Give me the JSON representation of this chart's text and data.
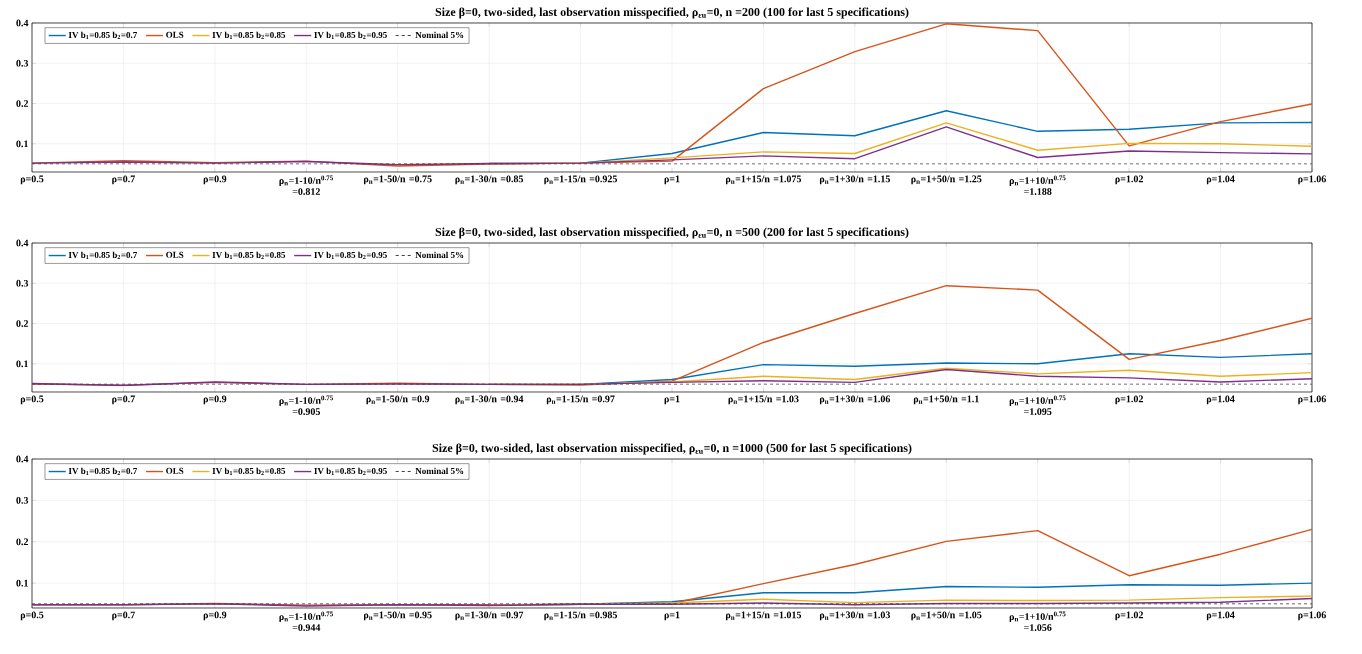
{
  "chart_data": [
    {
      "type": "line",
      "title": "Size β=0, two-sided, last observation misspecified, ρ$_{εu}$=0, n =200 (100 for last 5 specifications)",
      "categories": [
        "ρ=0.5",
        "ρ=0.7",
        "ρ=0.9",
        "ρ$_{n}$=1-10/n$^{0.75}$ =0.812",
        "ρ$_{n}$=1-50/n =0.75",
        "ρ$_{n}$=1-30/n =0.85",
        "ρ$_{n}$=1-15/n =0.925",
        "ρ=1",
        "ρ$_{n}$=1+15/n =1.075",
        "ρ$_{n}$=1+30/n =1.15",
        "ρ$_{n}$=1+50/n =1.25",
        "ρ$_{n}$=1+10/n$^{0.75}$ =1.188",
        "ρ=1.02",
        "ρ=1.04",
        "ρ=1.06"
      ],
      "series": [
        {
          "name": "IV b$_{1}$=0.85 b$_{2}$=0.7",
          "color": "#0072bd",
          "values": [
            null,
            null,
            null,
            null,
            null,
            0.051,
            0.052,
            0.076,
            0.128,
            0.12,
            0.182,
            0.131,
            0.136,
            0.152,
            0.153
          ]
        },
        {
          "name": "OLS",
          "color": "#d95319",
          "values": [
            0.052,
            0.058,
            0.053,
            0.057,
            0.045,
            0.05,
            0.052,
            0.057,
            0.237,
            0.329,
            0.398,
            0.381,
            0.095,
            0.155,
            0.199
          ]
        },
        {
          "name": "IV b$_{1}$=0.85 b$_{2}$=0.85",
          "color": "#edb120",
          "values": [
            null,
            null,
            null,
            null,
            null,
            0.051,
            0.052,
            0.065,
            0.08,
            0.076,
            0.152,
            0.084,
            0.101,
            0.1,
            0.094
          ]
        },
        {
          "name": "IV b$_{1}$=0.85 b$_{2}$=0.95",
          "color": "#7e2f8e",
          "values": [
            0.052,
            0.055,
            0.052,
            0.056,
            0.048,
            0.051,
            0.052,
            0.06,
            0.07,
            0.063,
            0.142,
            0.066,
            0.082,
            0.078,
            0.075
          ]
        }
      ],
      "ref_lines": [
        {
          "axis": "y",
          "value": 0.05,
          "label": "Nominal 5%",
          "color": "#404040",
          "line_style": "dashed"
        }
      ],
      "ylim": [
        0.03,
        0.4
      ],
      "yticks": [
        0.1,
        0.2,
        0.3,
        0.4
      ],
      "grid": true,
      "legend": "top left"
    },
    {
      "type": "line",
      "title": "Size β=0, two-sided, last observation misspecified, ρ$_{εu}$=0, n =500 (200 for last 5 specifications)",
      "categories": [
        "ρ=0.5",
        "ρ=0.7",
        "ρ=0.9",
        "ρ$_{n}$=1-10/n$^{0.75}$ =0.905",
        "ρ$_{n}$=1-50/n =0.9",
        "ρ$_{n}$=1-30/n =0.94",
        "ρ$_{n}$=1-15/n =0.97",
        "ρ=1",
        "ρ$_{n}$=1+15/n =1.03",
        "ρ$_{n}$=1+30/n =1.06",
        "ρ$_{n}$=1+50/n =1.1",
        "ρ$_{n}$=1+10/n$^{0.75}$ =1.095",
        "ρ=1.02",
        "ρ=1.04",
        "ρ=1.06"
      ],
      "series": [
        {
          "name": "IV b$_{1}$=0.85 b$_{2}$=0.7",
          "color": "#0072bd",
          "values": [
            null,
            null,
            null,
            null,
            null,
            0.049,
            0.049,
            0.061,
            0.098,
            0.094,
            0.102,
            0.1,
            0.125,
            0.116,
            0.125
          ]
        },
        {
          "name": "OLS",
          "color": "#d95319",
          "values": [
            0.05,
            0.047,
            0.054,
            0.049,
            0.052,
            0.049,
            0.047,
            0.057,
            0.153,
            0.225,
            0.294,
            0.283,
            0.111,
            0.158,
            0.213
          ]
        },
        {
          "name": "IV b$_{1}$=0.85 b$_{2}$=0.85",
          "color": "#edb120",
          "values": [
            null,
            null,
            null,
            null,
            null,
            0.049,
            0.049,
            0.055,
            0.069,
            0.061,
            0.089,
            0.075,
            0.084,
            0.069,
            0.078
          ]
        },
        {
          "name": "IV b$_{1}$=0.85 b$_{2}$=0.95",
          "color": "#7e2f8e",
          "values": [
            0.051,
            0.046,
            0.055,
            0.049,
            0.05,
            0.049,
            0.049,
            0.054,
            0.058,
            0.054,
            0.086,
            0.069,
            0.065,
            0.055,
            0.063
          ]
        }
      ],
      "ref_lines": [
        {
          "axis": "y",
          "value": 0.05,
          "label": "Nominal 5%",
          "color": "#404040",
          "line_style": "dashed"
        }
      ],
      "ylim": [
        0.03,
        0.4
      ],
      "yticks": [
        0.1,
        0.2,
        0.3,
        0.4
      ],
      "grid": true,
      "legend": "top left"
    },
    {
      "type": "line",
      "title": "Size β=0, two-sided, last observation misspecified, ρ$_{εu}$=0, n =1000 (500 for last 5 specifications)",
      "categories": [
        "ρ=0.5",
        "ρ=0.7",
        "ρ=0.9",
        "ρ$_{n}$=1-10/n$^{0.75}$ =0.944",
        "ρ$_{n}$=1-50/n =0.95",
        "ρ$_{n}$=1-30/n =0.97",
        "ρ$_{n}$=1-15/n =0.985",
        "ρ=1",
        "ρ$_{n}$=1+15/n =1.015",
        "ρ$_{n}$=1+30/n =1.03",
        "ρ$_{n}$=1+50/n =1.05",
        "ρ$_{n}$=1+10/n$^{0.75}$ =1.056",
        "ρ=1.02",
        "ρ=1.04",
        "ρ=1.06"
      ],
      "series": [
        {
          "name": "IV b$_{1}$=0.85 b$_{2}$=0.7",
          "color": "#0072bd",
          "values": [
            null,
            null,
            null,
            null,
            null,
            0.047,
            0.049,
            0.055,
            0.077,
            0.077,
            0.092,
            0.09,
            0.096,
            0.095,
            0.1
          ]
        },
        {
          "name": "OLS",
          "color": "#d95319",
          "values": [
            0.048,
            0.048,
            0.051,
            0.047,
            0.048,
            0.048,
            0.049,
            0.051,
            0.099,
            0.145,
            0.201,
            0.227,
            0.118,
            0.17,
            0.23
          ]
        },
        {
          "name": "IV b$_{1}$=0.85 b$_{2}$=0.85",
          "color": "#edb120",
          "values": [
            null,
            null,
            null,
            null,
            null,
            0.047,
            0.049,
            0.052,
            0.061,
            0.053,
            0.059,
            0.058,
            0.059,
            0.065,
            0.069
          ]
        },
        {
          "name": "IV b$_{1}$=0.85 b$_{2}$=0.95",
          "color": "#7e2f8e",
          "values": [
            0.048,
            0.048,
            0.05,
            0.045,
            0.048,
            0.046,
            0.049,
            0.049,
            0.052,
            0.048,
            0.051,
            0.051,
            0.052,
            0.054,
            0.063
          ]
        }
      ],
      "ref_lines": [
        {
          "axis": "y",
          "value": 0.05,
          "label": "Nominal 5%",
          "color": "#404040",
          "line_style": "dashed"
        }
      ],
      "ylim": [
        0.04,
        0.4
      ],
      "yticks": [
        0.1,
        0.2,
        0.3,
        0.4
      ],
      "grid": true,
      "legend": "top left"
    }
  ]
}
